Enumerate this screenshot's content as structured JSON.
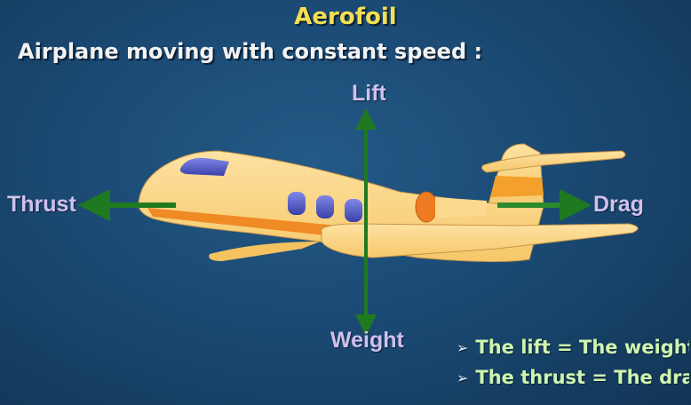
{
  "title": "Aerofoil",
  "subtitle": "Airplane moving with constant speed :",
  "forces": {
    "lift": "Lift",
    "weight": "Weight",
    "thrust": "Thrust",
    "drag": "Drag"
  },
  "notes": [
    "The lift = The weight",
    "The thrust = The dra"
  ],
  "colors": {
    "background": "#1b4a74",
    "title": "#f4df52",
    "force_label": "#cfc1ee",
    "note_text": "#cff5b0",
    "arrow": "#1f7a1f",
    "fuselage": "#fcd98c",
    "stripe": "#f08a24",
    "window": "#4a53c6"
  }
}
